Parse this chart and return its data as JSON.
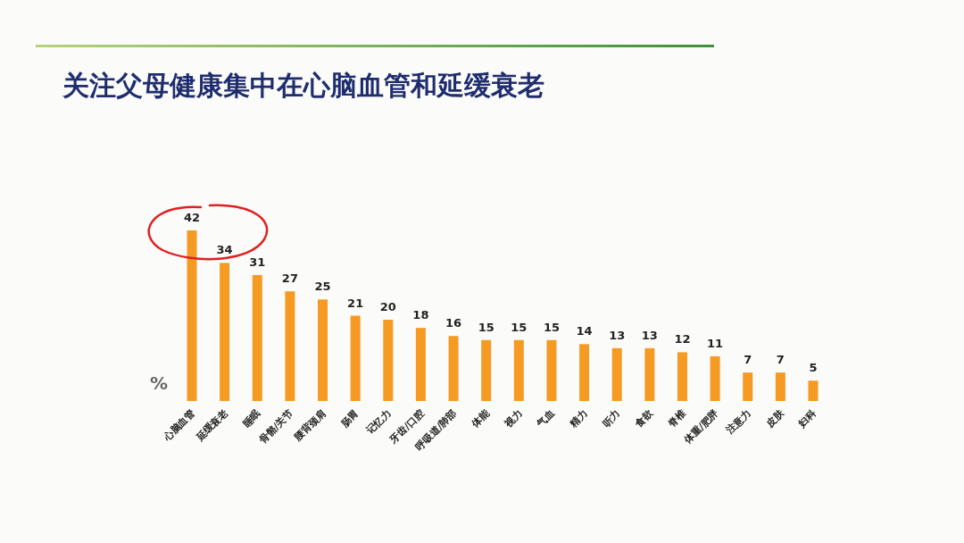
{
  "chart_data": {
    "type": "bar",
    "title": "关注父母健康集中在心脑血管和延缓衰老",
    "ylabel": "%",
    "categories": [
      "心脑血管",
      "延缓衰老",
      "睡眠",
      "骨骼/关节",
      "腰背颈肩",
      "肠胃",
      "记忆力",
      "牙齿/口腔",
      "呼吸道/肺部",
      "体能",
      "视力",
      "气血",
      "精力",
      "听力",
      "食欲",
      "脊椎",
      "体重/肥胖",
      "注意力",
      "皮肤",
      "妇科"
    ],
    "values": [
      42,
      34,
      31,
      27,
      25,
      21,
      20,
      18,
      16,
      15,
      15,
      15,
      14,
      13,
      13,
      12,
      11,
      7,
      7,
      5
    ],
    "color": "#f59a23",
    "data_labels": true
  }
}
